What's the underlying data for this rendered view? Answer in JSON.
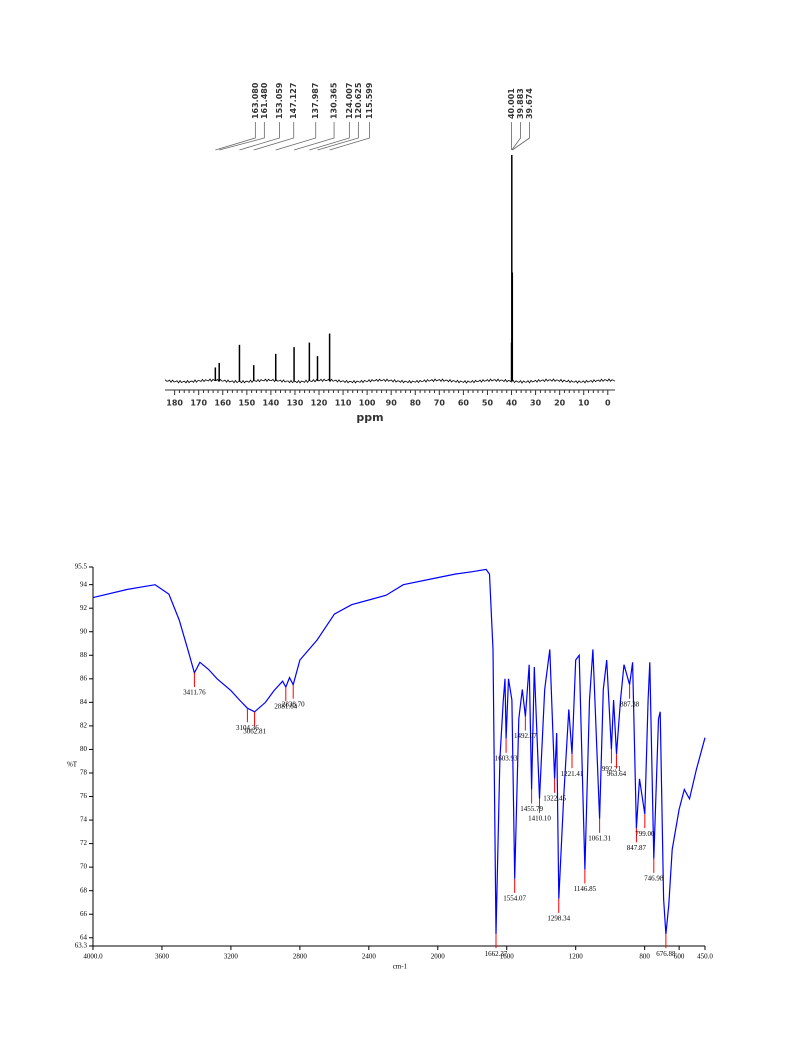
{
  "chart_data": [
    {
      "type": "stem",
      "x_label": "ppm",
      "x": [
        163.08,
        161.48,
        153.059,
        147.127,
        137.987,
        130.365,
        124.007,
        120.625,
        115.599,
        40.001,
        39.883,
        39.674
      ],
      "x_labels": [
        "163.080",
        "161.480",
        "153.059",
        "147.127",
        "137.987",
        "130.365",
        "124.007",
        "120.625",
        "115.599",
        "40.001",
        "39.883",
        "39.674"
      ],
      "values": [
        6,
        8,
        16,
        7,
        12,
        15,
        17,
        11,
        21,
        17,
        100,
        48
      ],
      "color": "#000000",
      "xlim": [
        184,
        -3
      ],
      "xticks": [
        180,
        170,
        160,
        150,
        140,
        130,
        120,
        110,
        100,
        90,
        80,
        70,
        60,
        50,
        40,
        30,
        20,
        10,
        0
      ],
      "ylim": [
        0,
        100
      ]
    },
    {
      "type": "line",
      "x_label": "cm-1",
      "y_label": "%T",
      "x": [
        4000,
        3800,
        3640,
        3560,
        3500,
        3450,
        3411.76,
        3380,
        3330,
        3280,
        3200,
        3150,
        3104.36,
        3062.81,
        3000,
        2950,
        2900,
        2881.64,
        2860,
        2838.7,
        2800,
        2700,
        2600,
        2500,
        2400,
        2300,
        2200,
        2000,
        1900,
        1800,
        1720,
        1700,
        1680,
        1662.37,
        1640,
        1620,
        1610,
        1603.93,
        1590,
        1570,
        1554.07,
        1530,
        1510,
        1492.07,
        1470,
        1455.79,
        1440,
        1410.1,
        1380,
        1350,
        1322.45,
        1310,
        1298.34,
        1270,
        1240,
        1221.41,
        1200,
        1180,
        1146.85,
        1120,
        1100,
        1061.31,
        1040,
        1020,
        992.71,
        980,
        963.64,
        940,
        920,
        887.38,
        870,
        847.87,
        830,
        799,
        780,
        770,
        746.98,
        720,
        710,
        690,
        676.88,
        660,
        640,
        600,
        570,
        540,
        500,
        450
      ],
      "series": [
        {
          "color": "#0000ff",
          "values": [
            92.9,
            93.6,
            94.0,
            93.2,
            91.0,
            88.5,
            86.5,
            87.4,
            86.8,
            86.0,
            85.0,
            84.2,
            83.5,
            83.2,
            84.0,
            85.0,
            85.8,
            85.3,
            86.1,
            85.5,
            87.6,
            89.3,
            91.5,
            92.3,
            92.7,
            93.1,
            94.0,
            94.6,
            94.9,
            95.1,
            95.3,
            94.9,
            88.5,
            64.3,
            79.2,
            84.2,
            86.0,
            80.9,
            86.0,
            84.2,
            69.0,
            82.6,
            85.1,
            82.8,
            87.2,
            76.6,
            87.0,
            75.8,
            85.1,
            88.5,
            77.5,
            81.4,
            67.3,
            75.8,
            83.4,
            79.6,
            87.6,
            88.0,
            69.8,
            84.2,
            88.5,
            74.1,
            85.1,
            87.6,
            80.0,
            84.2,
            79.6,
            84.2,
            87.2,
            85.5,
            87.4,
            73.3,
            77.5,
            74.5,
            84.2,
            87.4,
            70.7,
            82.6,
            83.2,
            67.3,
            64.3,
            66.8,
            71.5,
            74.9,
            76.6,
            75.8,
            78.3,
            81.0
          ]
        }
      ],
      "annotations": [
        {
          "x": 3411.76,
          "y": 86.5,
          "text": "3411.76"
        },
        {
          "x": 3104.36,
          "y": 83.5,
          "text": "3104.36"
        },
        {
          "x": 3062.81,
          "y": 83.2,
          "text": "3062.81"
        },
        {
          "x": 2881.64,
          "y": 85.3,
          "text": "2881.64"
        },
        {
          "x": 2838.7,
          "y": 85.5,
          "text": "2838.70"
        },
        {
          "x": 1662.37,
          "y": 64.3,
          "text": "1662.37"
        },
        {
          "x": 1603.93,
          "y": 80.9,
          "text": "1603.93"
        },
        {
          "x": 1554.07,
          "y": 69.0,
          "text": "1554.07"
        },
        {
          "x": 1492.07,
          "y": 82.8,
          "text": "1492.07"
        },
        {
          "x": 1455.79,
          "y": 76.6,
          "text": "1455.79"
        },
        {
          "x": 1410.1,
          "y": 75.8,
          "text": "1410.10"
        },
        {
          "x": 1322.45,
          "y": 77.5,
          "text": "1322.45"
        },
        {
          "x": 1298.34,
          "y": 67.3,
          "text": "1298.34"
        },
        {
          "x": 1221.41,
          "y": 79.6,
          "text": "1221.41"
        },
        {
          "x": 1146.85,
          "y": 69.8,
          "text": "1146.85"
        },
        {
          "x": 1061.31,
          "y": 74.1,
          "text": "1061.31"
        },
        {
          "x": 992.71,
          "y": 80.0,
          "text": "992.71"
        },
        {
          "x": 963.64,
          "y": 79.6,
          "text": "963.64"
        },
        {
          "x": 887.38,
          "y": 85.5,
          "text": "887.38"
        },
        {
          "x": 847.87,
          "y": 73.3,
          "text": "847.87"
        },
        {
          "x": 799,
          "y": 74.5,
          "text": "799.00"
        },
        {
          "x": 746.98,
          "y": 70.7,
          "text": "746.98"
        },
        {
          "x": 676.88,
          "y": 64.3,
          "text": "676.88"
        }
      ],
      "annotation_color": "#ff0000",
      "xlim": [
        4000,
        450
      ],
      "xticks": [
        {
          "value": 4000,
          "label": "4000.0"
        },
        3600,
        3200,
        2800,
        2400,
        2000,
        1600,
        1200,
        800,
        600,
        {
          "value": 450,
          "label": "450.0"
        }
      ],
      "ylim": [
        63.3,
        95.5
      ],
      "yticks": [
        63.3,
        64,
        66,
        68,
        70,
        72,
        74,
        76,
        78,
        80,
        82,
        84,
        86,
        88,
        90,
        92,
        94,
        95.5
      ]
    }
  ]
}
